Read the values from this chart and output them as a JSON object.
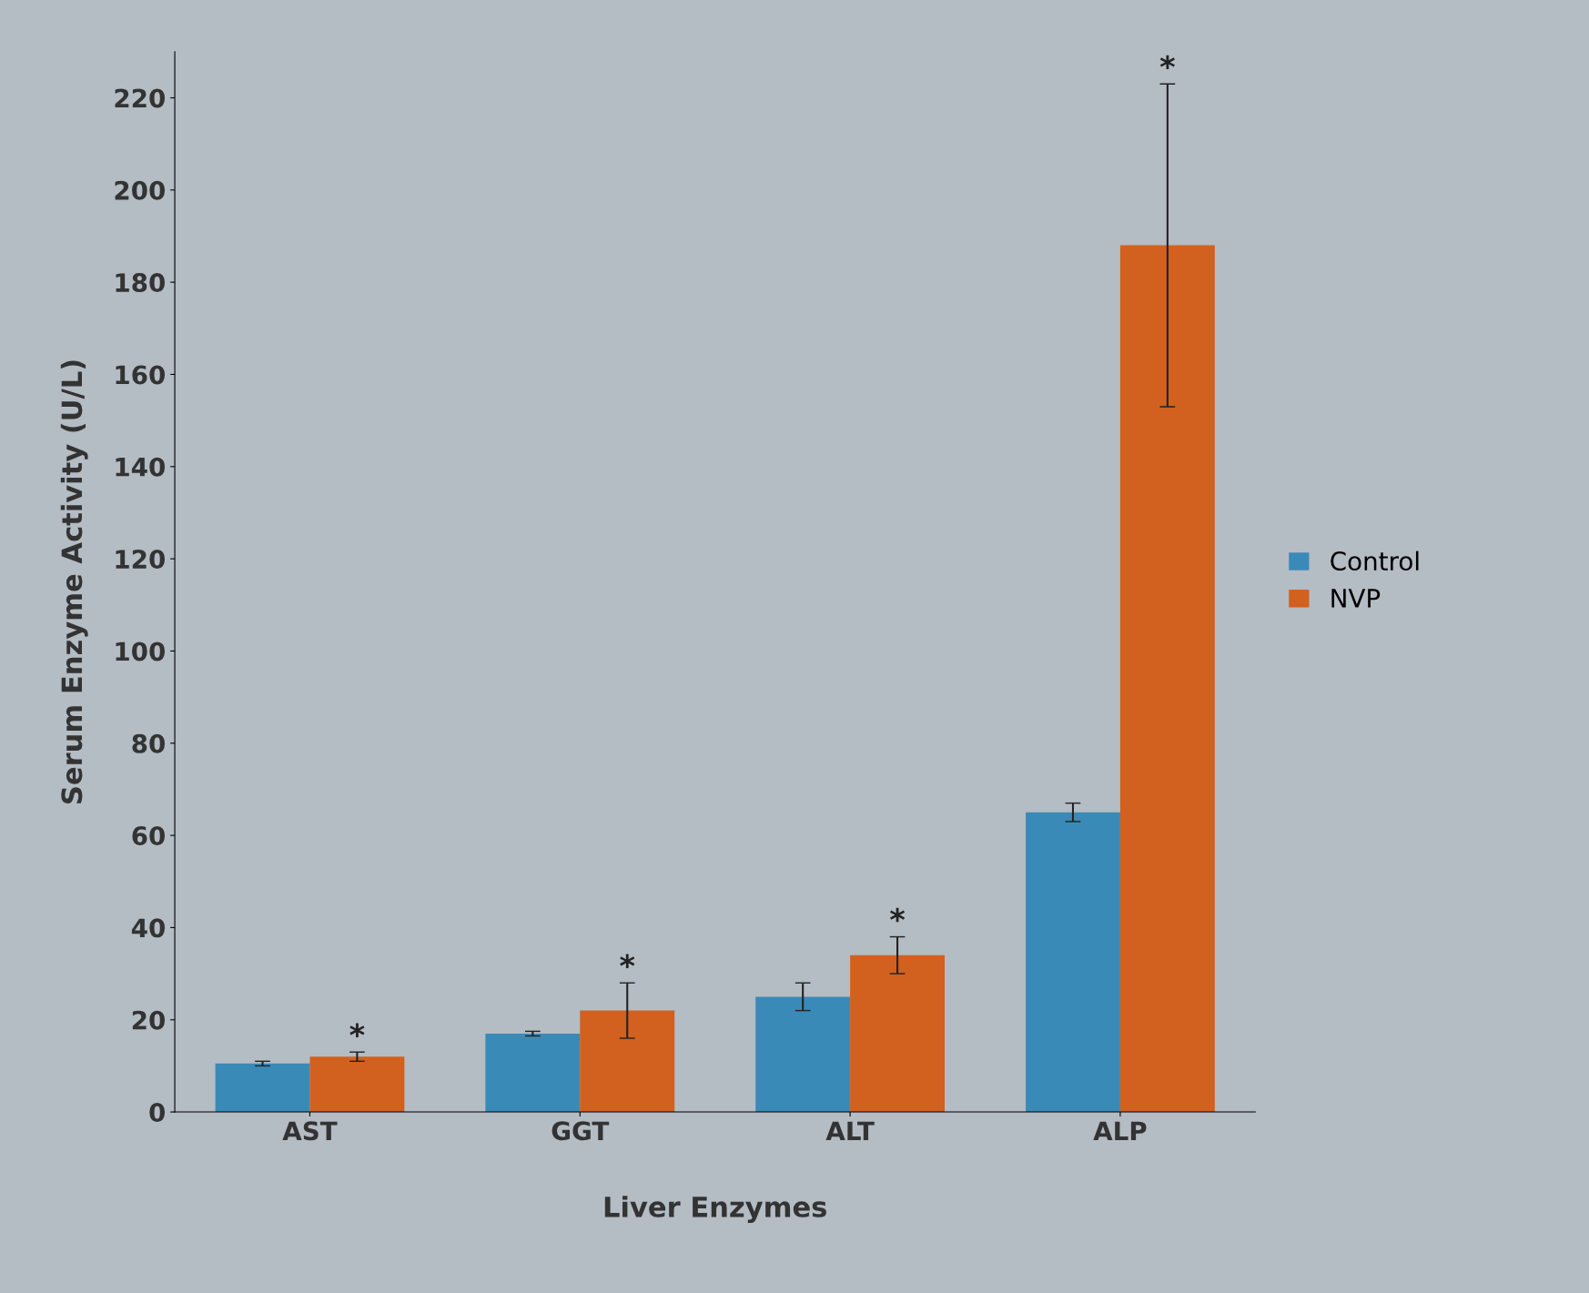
{
  "chart_data": {
    "type": "bar",
    "xlabel": "Liver Enzymes",
    "ylabel": "Serum Enzyme Activity (U/L)",
    "categories": [
      "AST",
      "GGT",
      "ALT",
      "ALP"
    ],
    "series": [
      {
        "name": "Control",
        "color": "#3a8ab8",
        "values": [
          10.5,
          17,
          25,
          65
        ],
        "errors": [
          0.5,
          0.5,
          3,
          2
        ]
      },
      {
        "name": "NVP",
        "color": "#d2601e",
        "values": [
          12,
          22,
          34,
          188
        ],
        "errors": [
          1,
          6,
          4,
          35
        ]
      }
    ],
    "ylim": [
      0,
      230
    ],
    "yticks": [
      0,
      20,
      40,
      60,
      80,
      100,
      120,
      140,
      160,
      180,
      200,
      220
    ],
    "annotations": [
      "*",
      "*",
      "*",
      "*"
    ],
    "legend": "right",
    "grid": false
  }
}
